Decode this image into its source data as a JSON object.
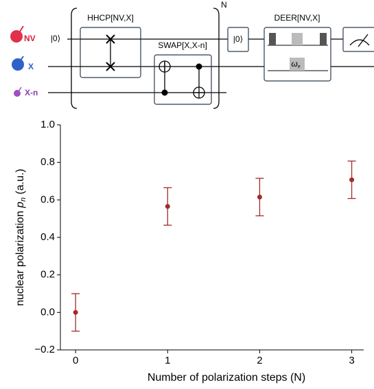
{
  "circuit": {
    "qubits": [
      {
        "label": "NV"
      },
      {
        "label": "X"
      },
      {
        "label": "X-n"
      }
    ],
    "init_label": "|0⟩",
    "repeat_label": "N",
    "gates": [
      {
        "label": "HHCP[NV,X]"
      },
      {
        "label": "SWAP[X,X-n]"
      },
      {
        "label": "|0⟩"
      },
      {
        "label": "DEER[NV,X]",
        "inner_label": {
          "base": "ω",
          "sub": "e"
        }
      }
    ]
  },
  "chart_data": {
    "type": "errorbar",
    "xlabel": "Number of polarization steps (N)",
    "ylabel": {
      "main": "nuclear polarization ",
      "var": "p",
      "sub": "n",
      "unit": " (a.u.)"
    },
    "x": [
      0,
      1,
      2,
      3
    ],
    "values": [
      0,
      0.565,
      0.615,
      0.707
    ],
    "errors": [
      0.1,
      0.1,
      0.1,
      0.1
    ],
    "color": "#a52a2a",
    "xlim": [
      -0.165,
      3.13
    ],
    "ylim": [
      -0.2,
      1.0
    ],
    "xticks": [
      0,
      1,
      2,
      3
    ],
    "yticks": [
      {
        "value": -0.2,
        "label": "−0.2"
      },
      {
        "value": 0,
        "label": "0.0"
      },
      0.2,
      0.4,
      0.6,
      0.8,
      {
        "value": 1.0,
        "label": "1.0"
      }
    ]
  }
}
